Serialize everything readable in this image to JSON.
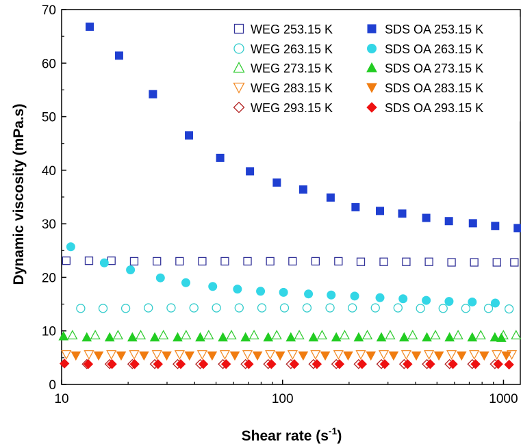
{
  "chart_data": {
    "type": "scatter",
    "title": "",
    "xlabel": "Shear rate (s",
    "xlabel_sup": "-1",
    "xlabel_end": ")",
    "ylabel": "Dynamic viscosity (mPa.s)",
    "xscale": "log",
    "xlim": [
      10,
      1200
    ],
    "ylim": [
      0,
      70
    ],
    "grid": false,
    "legend_placement": "top-right",
    "x_ticks": [
      10,
      100,
      1000
    ],
    "x_tick_labels": [
      "10",
      "100",
      "1000"
    ],
    "y_ticks": [
      0,
      10,
      20,
      30,
      40,
      50,
      60,
      70
    ],
    "y_tick_labels": [
      "0",
      "10",
      "20",
      "30",
      "40",
      "50",
      "60",
      "70"
    ],
    "series": [
      {
        "name": "WEG 253.15 K",
        "marker": "square",
        "filled": false,
        "color": "#333399",
        "x": [
          10.5,
          13.3,
          16.8,
          21.3,
          27,
          34.2,
          43.3,
          54.8,
          69.4,
          87.9,
          111,
          141,
          179,
          226,
          287,
          363,
          460,
          582,
          737,
          933,
          1120
        ],
        "y": [
          23.1,
          23.1,
          23.1,
          23.0,
          23.0,
          23.0,
          23.0,
          23.0,
          23.0,
          23.0,
          23.0,
          23.0,
          23.0,
          22.9,
          22.9,
          22.9,
          22.9,
          22.8,
          22.8,
          22.8,
          22.8
        ]
      },
      {
        "name": "WEG 263.15 K",
        "marker": "circle",
        "filled": false,
        "color": "#33cccc",
        "x": [
          12.2,
          15.4,
          19.5,
          24.7,
          31.3,
          39.7,
          50.2,
          63.6,
          80.6,
          102,
          129,
          164,
          207,
          263,
          333,
          421,
          533,
          675,
          855,
          1060
        ],
        "y": [
          14.2,
          14.2,
          14.2,
          14.3,
          14.3,
          14.3,
          14.3,
          14.3,
          14.3,
          14.3,
          14.3,
          14.3,
          14.3,
          14.3,
          14.3,
          14.2,
          14.2,
          14.2,
          14.2,
          14.1
        ]
      },
      {
        "name": "WEG 273.15 K",
        "marker": "triangle-up",
        "filled": false,
        "color": "#33cc33",
        "x": [
          11.2,
          14.2,
          18.0,
          22.8,
          28.9,
          36.6,
          46.3,
          58.7,
          74.3,
          94.1,
          119,
          151,
          191,
          242,
          307,
          388,
          492,
          623,
          789,
          999,
          1140
        ],
        "y": [
          9.2,
          9.2,
          9.2,
          9.2,
          9.2,
          9.2,
          9.2,
          9.2,
          9.2,
          9.2,
          9.2,
          9.2,
          9.2,
          9.2,
          9.2,
          9.2,
          9.2,
          9.2,
          9.2,
          9.2,
          9.2
        ]
      },
      {
        "name": "WEG 283.15 K",
        "marker": "triangle-down",
        "filled": false,
        "color": "#f28c28",
        "x": [
          10.5,
          13.3,
          16.8,
          21.3,
          27,
          34.2,
          43.3,
          54.8,
          69.4,
          87.9,
          111,
          141,
          179,
          226,
          287,
          363,
          460,
          582,
          737,
          933,
          1090
        ],
        "y": [
          5.6,
          5.6,
          5.6,
          5.6,
          5.6,
          5.6,
          5.6,
          5.6,
          5.6,
          5.6,
          5.6,
          5.6,
          5.6,
          5.6,
          5.6,
          5.6,
          5.6,
          5.6,
          5.6,
          5.6,
          5.6
        ]
      },
      {
        "name": "WEG 293.15 K",
        "marker": "diamond",
        "filled": false,
        "color": "#b22222",
        "x": [
          13.0,
          16.5,
          20.9,
          26.4,
          33.5,
          42.4,
          53.7,
          68.0,
          86.1,
          109,
          138,
          175,
          221,
          280,
          355,
          450,
          570,
          722,
          914
        ],
        "y": [
          3.8,
          3.8,
          3.8,
          3.8,
          3.8,
          3.8,
          3.8,
          3.8,
          3.8,
          3.8,
          3.8,
          3.8,
          3.8,
          3.8,
          3.8,
          3.8,
          3.8,
          3.8,
          3.8
        ]
      },
      {
        "name": "SDS OA 253.15 K",
        "marker": "square",
        "filled": true,
        "color": "#1f3fd1",
        "x": [
          13.4,
          18.2,
          25.9,
          37.7,
          52.2,
          71.2,
          94.2,
          124,
          165,
          214,
          276,
          348,
          447,
          566,
          727,
          917,
          1160
        ],
        "y": [
          66.8,
          61.4,
          54.2,
          46.5,
          42.3,
          39.8,
          37.7,
          36.4,
          34.9,
          33.1,
          32.4,
          31.9,
          31.1,
          30.5,
          30.1,
          29.6,
          29.2
        ]
      },
      {
        "name": "SDS OA 263.15 K",
        "marker": "circle",
        "filled": true,
        "color": "#33d6e6",
        "x": [
          11.0,
          15.6,
          20.5,
          28.0,
          36.5,
          48.3,
          62.5,
          79.5,
          101,
          131,
          166,
          212,
          276,
          351,
          447,
          567,
          722,
          918
        ],
        "y": [
          25.7,
          22.7,
          21.4,
          19.9,
          19.0,
          18.3,
          17.8,
          17.4,
          17.2,
          16.9,
          16.7,
          16.5,
          16.2,
          16.0,
          15.7,
          15.5,
          15.4,
          15.2
        ]
      },
      {
        "name": "SDS OA 273.15 K",
        "marker": "triangle-up",
        "filled": true,
        "color": "#22cc22",
        "x": [
          10.2,
          13.0,
          16.5,
          20.9,
          26.4,
          33.5,
          42.4,
          53.7,
          68.0,
          86.1,
          109,
          138,
          175,
          221,
          280,
          355,
          450,
          570,
          722,
          914,
          978
        ],
        "y": [
          9.0,
          8.8,
          8.8,
          8.8,
          8.8,
          8.8,
          8.8,
          8.8,
          8.8,
          8.8,
          8.8,
          8.8,
          8.8,
          8.8,
          8.8,
          8.8,
          8.8,
          8.8,
          8.8,
          8.8,
          8.7
        ]
      },
      {
        "name": "SDS OA 283.15 K",
        "marker": "triangle-down",
        "filled": true,
        "color": "#f07c10",
        "x": [
          11.6,
          14.7,
          18.6,
          23.6,
          29.9,
          37.9,
          48.0,
          60.8,
          77.0,
          97.5,
          124,
          156,
          198,
          251,
          318,
          403,
          510,
          646,
          818,
          1030
        ],
        "y": [
          5.4,
          5.4,
          5.4,
          5.4,
          5.4,
          5.4,
          5.4,
          5.4,
          5.4,
          5.4,
          5.4,
          5.4,
          5.4,
          5.4,
          5.4,
          5.4,
          5.4,
          5.4,
          5.4,
          5.4
        ]
      },
      {
        "name": "SDS OA 293.15 K",
        "marker": "diamond",
        "filled": true,
        "color": "#ee1111",
        "x": [
          10.3,
          13.2,
          16.9,
          21.4,
          27.3,
          34.6,
          43.8,
          55.5,
          70.3,
          89.0,
          113,
          143,
          181,
          229,
          290,
          368,
          466,
          590,
          747,
          946,
          1060
        ],
        "y": [
          3.9,
          3.8,
          3.8,
          3.8,
          3.8,
          3.8,
          3.8,
          3.8,
          3.8,
          3.8,
          3.8,
          3.8,
          3.8,
          3.8,
          3.8,
          3.8,
          3.8,
          3.8,
          3.8,
          3.8,
          3.7
        ]
      }
    ],
    "legend": {
      "entries_left": [
        "WEG 253.15 K",
        "WEG 263.15 K",
        "WEG 273.15 K",
        "WEG 283.15 K",
        "WEG 293.15 K"
      ],
      "entries_right": [
        "SDS OA 253.15 K",
        "SDS OA 263.15 K",
        "SDS OA 273.15 K",
        "SDS OA 283.15 K",
        "SDS OA 293.15 K"
      ]
    }
  }
}
